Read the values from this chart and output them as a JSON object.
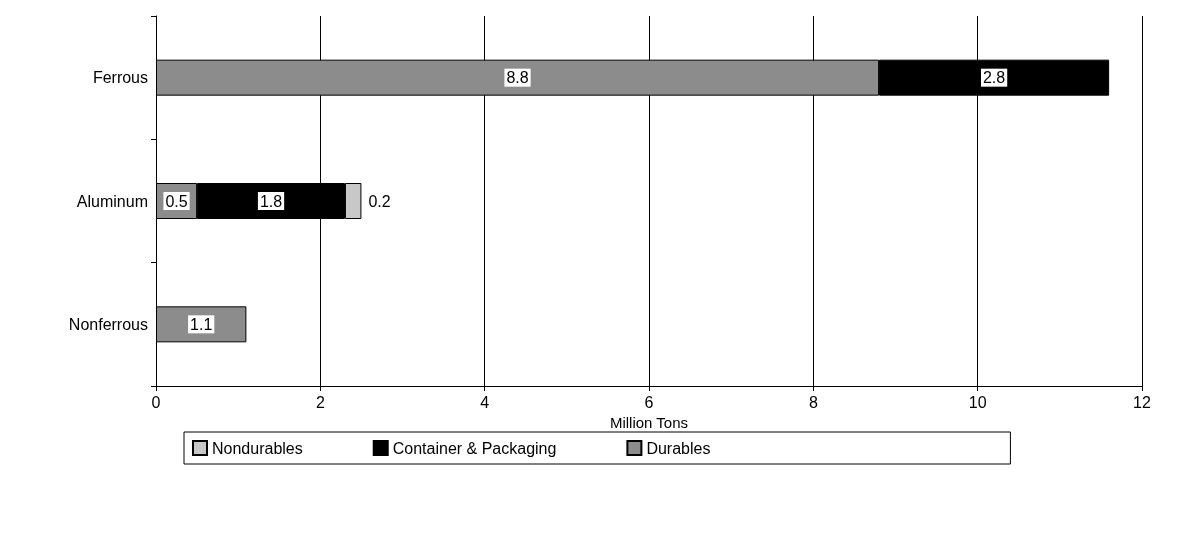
{
  "chart_data": {
    "type": "bar",
    "orientation": "horizontal",
    "stacked": true,
    "categories": [
      "Ferrous",
      "Aluminum",
      "Nonferrous"
    ],
    "series": [
      {
        "name": "Durables",
        "color": "#8c8c8c",
        "values": [
          8.8,
          0.5,
          1.1
        ]
      },
      {
        "name": "Container & Packaging",
        "color": "#000000",
        "values": [
          2.8,
          1.8,
          null
        ]
      },
      {
        "name": "Nondurables",
        "color": "#c8c8c8",
        "values": [
          null,
          0.2,
          null
        ]
      }
    ],
    "xlabel": "Million Tons",
    "xlim": [
      0,
      12
    ],
    "xticks": [
      0,
      2,
      4,
      6,
      8,
      10,
      12
    ],
    "grid": "x",
    "legend": "bottom",
    "data_labels": true
  }
}
